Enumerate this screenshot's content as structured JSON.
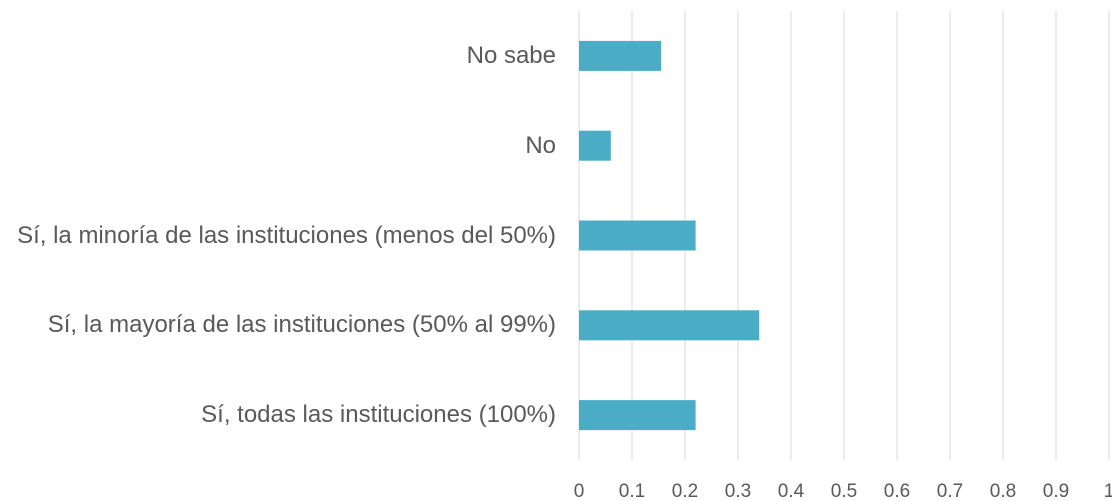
{
  "chart_data": {
    "type": "barh",
    "categories": [
      "No sabe",
      "No",
      "Sí, la minoría de las instituciones (menos del 50%)",
      "Sí, la mayoría de las instituciones (50% al 99%)",
      "Sí, todas las instituciones (100%)"
    ],
    "values": [
      0.155,
      0.06,
      0.22,
      0.34,
      0.22
    ],
    "color": "#4bacc6",
    "xlim": [
      0,
      1
    ],
    "xticks": [
      0,
      0.1,
      0.2,
      0.3,
      0.4,
      0.5,
      0.6,
      0.7,
      0.8,
      0.9,
      1
    ],
    "grid": true
  }
}
